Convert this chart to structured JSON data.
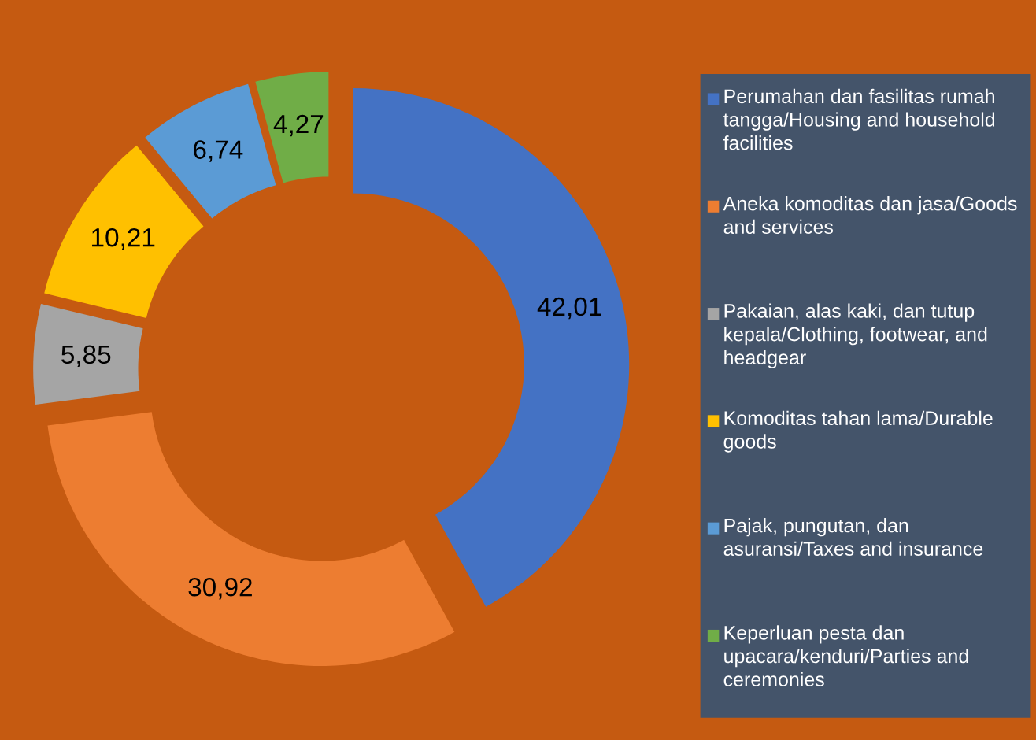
{
  "chart_data": {
    "type": "donut",
    "categories": [
      "Perumahan dan fasilitas rumah tangga/Housing and household facilities",
      "Aneka komoditas dan jasa/Goods and services",
      "Pakaian, alas kaki, dan tutup kepala/Clothing, footwear, and headgear",
      "Komoditas tahan lama/Durable goods",
      "Pajak, pungutan, dan asuransi/Taxes and insurance",
      "Keperluan pesta dan upacara/kenduri/Parties and ceremonies"
    ],
    "values": [
      42.01,
      30.92,
      5.85,
      10.21,
      6.74,
      4.27
    ],
    "value_labels": [
      "42,01",
      "30,92",
      "5,85",
      "10,21",
      "6,74",
      "4,27"
    ],
    "colors": [
      "#4472c4",
      "#ed7d31",
      "#a5a5a5",
      "#ffc000",
      "#5b9bd5",
      "#70ad47"
    ],
    "legend": "right"
  }
}
